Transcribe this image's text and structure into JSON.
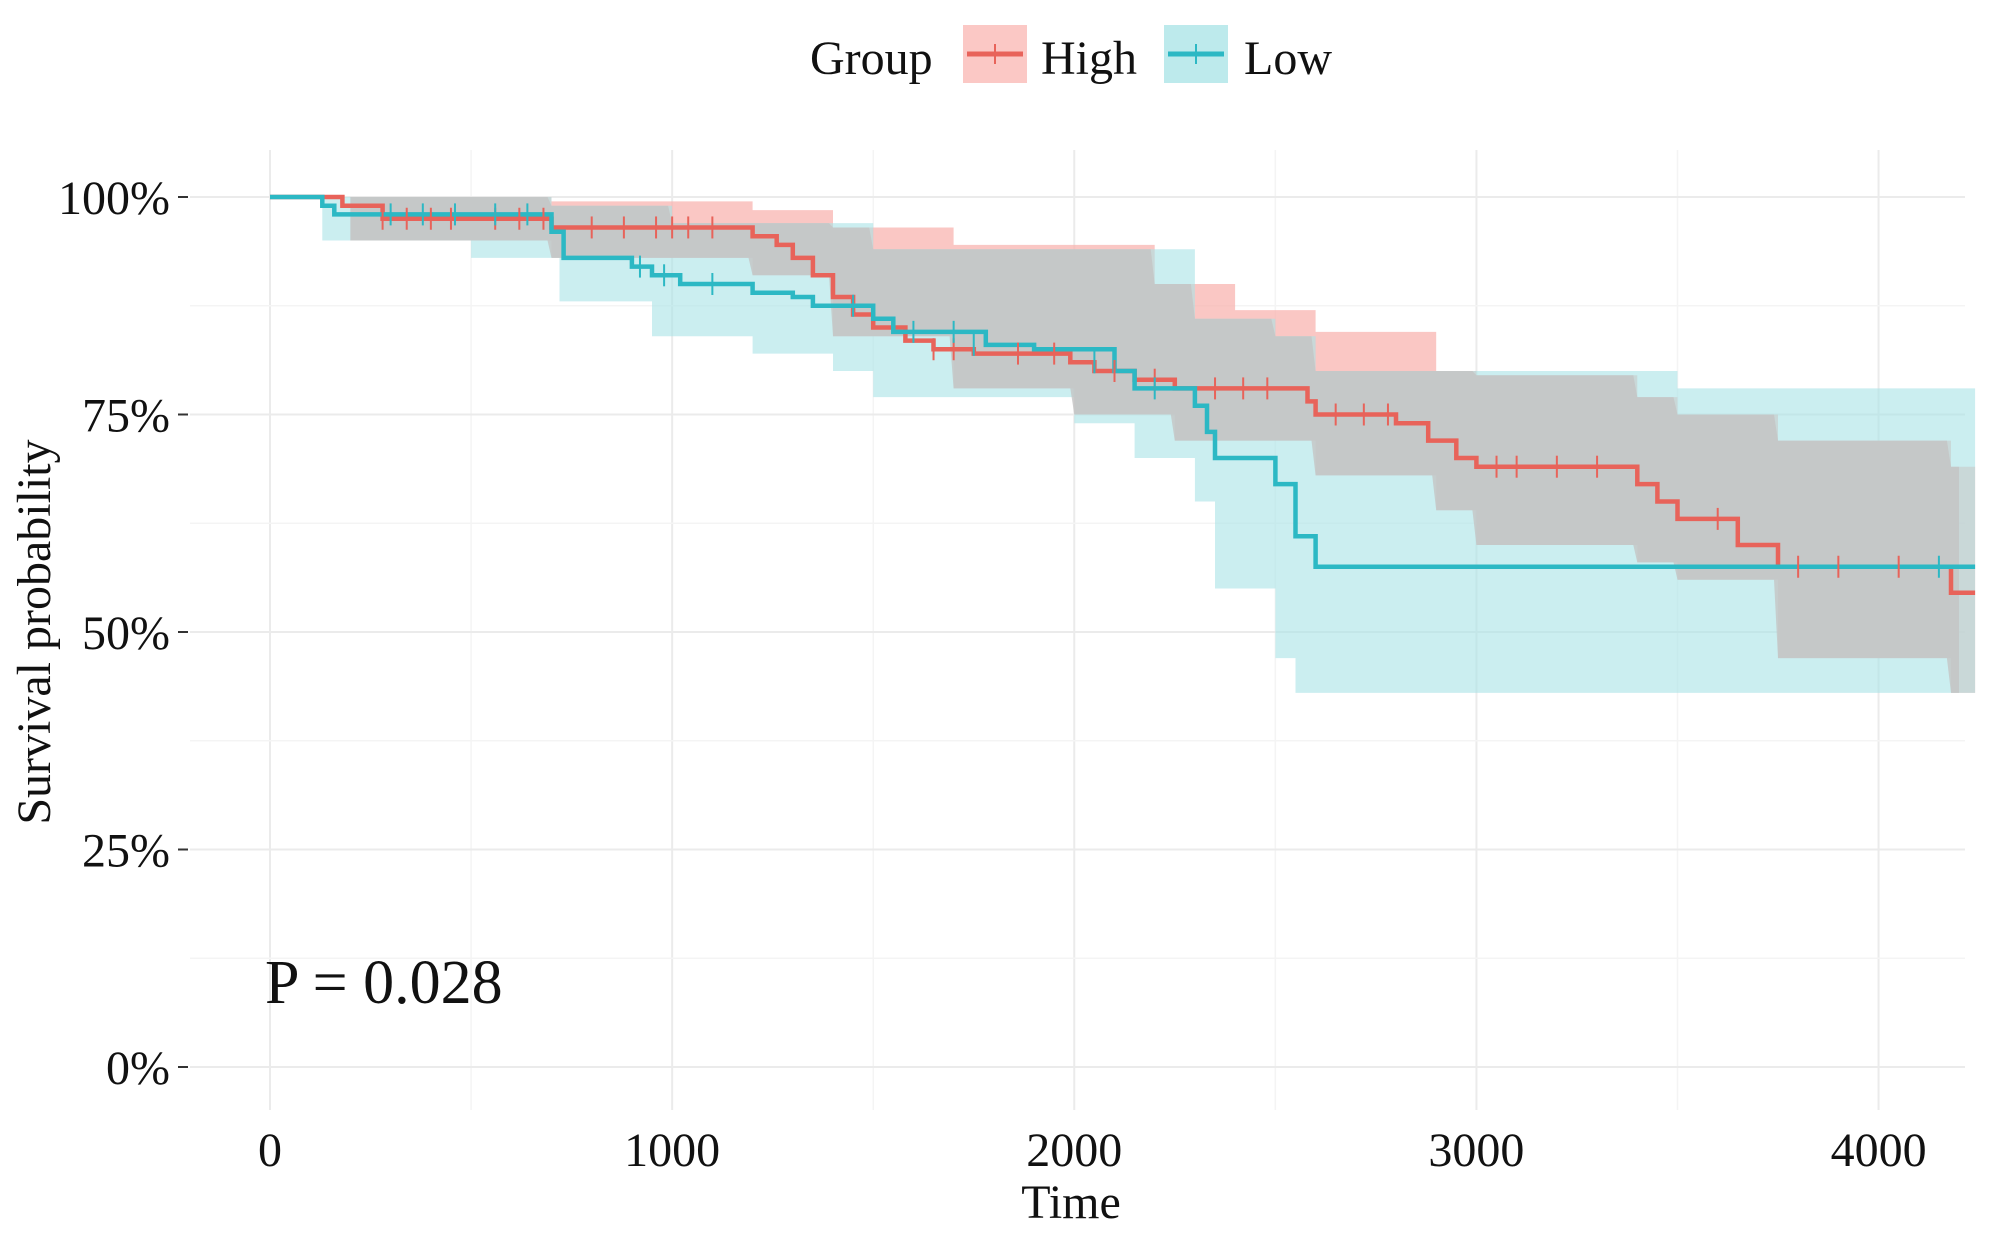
{
  "chart_data": {
    "type": "line",
    "subtype": "kaplan-meier",
    "xlabel": "Time",
    "ylabel": "Survival probability",
    "xlim": [
      0,
      4200
    ],
    "ylim": [
      0,
      1
    ],
    "x_ticks": [
      {
        "value": 0,
        "label": "0"
      },
      {
        "value": 1000,
        "label": "1000"
      },
      {
        "value": 2000,
        "label": "2000"
      },
      {
        "value": 3000,
        "label": "3000"
      },
      {
        "value": 4000,
        "label": "4000"
      }
    ],
    "y_ticks": [
      {
        "value": 0,
        "label": "0%"
      },
      {
        "value": 0.25,
        "label": "25%"
      },
      {
        "value": 0.5,
        "label": "50%"
      },
      {
        "value": 0.75,
        "label": "75%"
      },
      {
        "value": 1,
        "label": "100%"
      }
    ],
    "legend": {
      "title": "Group",
      "position": "top"
    },
    "annotation": "P = 0.028",
    "grid": true,
    "series": [
      {
        "name": "High",
        "color": "#E8635A",
        "ci_color": "#F8B4B0",
        "steps": [
          [
            0,
            1.0
          ],
          [
            180,
            0.99
          ],
          [
            280,
            0.975
          ],
          [
            700,
            0.965
          ],
          [
            1200,
            0.955
          ],
          [
            1260,
            0.945
          ],
          [
            1300,
            0.93
          ],
          [
            1350,
            0.91
          ],
          [
            1400,
            0.885
          ],
          [
            1450,
            0.865
          ],
          [
            1500,
            0.85
          ],
          [
            1580,
            0.835
          ],
          [
            1650,
            0.825
          ],
          [
            1750,
            0.82
          ],
          [
            1990,
            0.81
          ],
          [
            2050,
            0.8
          ],
          [
            2150,
            0.79
          ],
          [
            2250,
            0.78
          ],
          [
            2580,
            0.765
          ],
          [
            2600,
            0.75
          ],
          [
            2800,
            0.74
          ],
          [
            2880,
            0.72
          ],
          [
            2950,
            0.7
          ],
          [
            3000,
            0.69
          ],
          [
            3400,
            0.67
          ],
          [
            3450,
            0.65
          ],
          [
            3500,
            0.63
          ],
          [
            3650,
            0.6
          ],
          [
            3750,
            0.575
          ],
          [
            4180,
            0.545
          ],
          [
            4240,
            0.545
          ]
        ],
        "ci_upper": [
          [
            0,
            1.0
          ],
          [
            700,
            0.995
          ],
          [
            1200,
            0.985
          ],
          [
            1400,
            0.965
          ],
          [
            1700,
            0.945
          ],
          [
            2200,
            0.9
          ],
          [
            2400,
            0.87
          ],
          [
            2600,
            0.845
          ],
          [
            2900,
            0.8
          ],
          [
            3000,
            0.795
          ],
          [
            3400,
            0.77
          ],
          [
            3500,
            0.75
          ],
          [
            3750,
            0.72
          ],
          [
            4180,
            0.69
          ],
          [
            4240,
            0.69
          ]
        ],
        "ci_lower": [
          [
            0,
            1.0
          ],
          [
            200,
            0.95
          ],
          [
            700,
            0.93
          ],
          [
            1200,
            0.91
          ],
          [
            1400,
            0.84
          ],
          [
            1700,
            0.78
          ],
          [
            2000,
            0.75
          ],
          [
            2250,
            0.72
          ],
          [
            2600,
            0.68
          ],
          [
            2900,
            0.64
          ],
          [
            3000,
            0.6
          ],
          [
            3400,
            0.58
          ],
          [
            3500,
            0.56
          ],
          [
            3750,
            0.47
          ],
          [
            4180,
            0.43
          ],
          [
            4240,
            0.43
          ]
        ],
        "censors": [
          [
            280,
            0.975
          ],
          [
            340,
            0.975
          ],
          [
            400,
            0.975
          ],
          [
            450,
            0.975
          ],
          [
            560,
            0.975
          ],
          [
            620,
            0.975
          ],
          [
            680,
            0.975
          ],
          [
            800,
            0.965
          ],
          [
            880,
            0.965
          ],
          [
            960,
            0.965
          ],
          [
            1000,
            0.965
          ],
          [
            1040,
            0.965
          ],
          [
            1100,
            0.965
          ],
          [
            1650,
            0.825
          ],
          [
            1700,
            0.825
          ],
          [
            1860,
            0.82
          ],
          [
            1950,
            0.82
          ],
          [
            2100,
            0.8
          ],
          [
            2200,
            0.79
          ],
          [
            2350,
            0.78
          ],
          [
            2420,
            0.78
          ],
          [
            2480,
            0.78
          ],
          [
            2650,
            0.75
          ],
          [
            2720,
            0.75
          ],
          [
            2780,
            0.75
          ],
          [
            3050,
            0.69
          ],
          [
            3100,
            0.69
          ],
          [
            3200,
            0.69
          ],
          [
            3300,
            0.69
          ],
          [
            3600,
            0.63
          ],
          [
            3800,
            0.575
          ],
          [
            3900,
            0.575
          ],
          [
            4050,
            0.575
          ]
        ]
      },
      {
        "name": "Low",
        "color": "#2CB8C4",
        "ci_color": "#A9E3E6",
        "steps": [
          [
            0,
            1.0
          ],
          [
            130,
            0.99
          ],
          [
            160,
            0.98
          ],
          [
            700,
            0.96
          ],
          [
            730,
            0.93
          ],
          [
            900,
            0.92
          ],
          [
            950,
            0.91
          ],
          [
            1020,
            0.9
          ],
          [
            1200,
            0.89
          ],
          [
            1300,
            0.885
          ],
          [
            1350,
            0.875
          ],
          [
            1500,
            0.86
          ],
          [
            1550,
            0.845
          ],
          [
            1780,
            0.83
          ],
          [
            1900,
            0.825
          ],
          [
            2100,
            0.8
          ],
          [
            2150,
            0.78
          ],
          [
            2300,
            0.76
          ],
          [
            2330,
            0.73
          ],
          [
            2350,
            0.7
          ],
          [
            2500,
            0.67
          ],
          [
            2550,
            0.61
          ],
          [
            2600,
            0.575
          ],
          [
            4240,
            0.575
          ]
        ],
        "ci_upper": [
          [
            0,
            1.0
          ],
          [
            700,
            0.99
          ],
          [
            1000,
            0.97
          ],
          [
            1500,
            0.94
          ],
          [
            2300,
            0.86
          ],
          [
            2500,
            0.84
          ],
          [
            2600,
            0.8
          ],
          [
            3500,
            0.78
          ],
          [
            4240,
            0.78
          ]
        ],
        "ci_lower": [
          [
            0,
            1.0
          ],
          [
            130,
            0.95
          ],
          [
            500,
            0.93
          ],
          [
            720,
            0.88
          ],
          [
            950,
            0.84
          ],
          [
            1200,
            0.82
          ],
          [
            1400,
            0.8
          ],
          [
            1500,
            0.77
          ],
          [
            2000,
            0.74
          ],
          [
            2150,
            0.7
          ],
          [
            2300,
            0.65
          ],
          [
            2350,
            0.55
          ],
          [
            2500,
            0.47
          ],
          [
            2550,
            0.43
          ],
          [
            4240,
            0.43
          ]
        ],
        "censors": [
          [
            300,
            0.98
          ],
          [
            380,
            0.98
          ],
          [
            460,
            0.98
          ],
          [
            560,
            0.98
          ],
          [
            640,
            0.98
          ],
          [
            920,
            0.92
          ],
          [
            980,
            0.91
          ],
          [
            1100,
            0.9
          ],
          [
            1450,
            0.875
          ],
          [
            1600,
            0.845
          ],
          [
            1700,
            0.845
          ],
          [
            1750,
            0.83
          ],
          [
            2050,
            0.81
          ],
          [
            2200,
            0.78
          ],
          [
            4150,
            0.575
          ]
        ]
      }
    ]
  }
}
